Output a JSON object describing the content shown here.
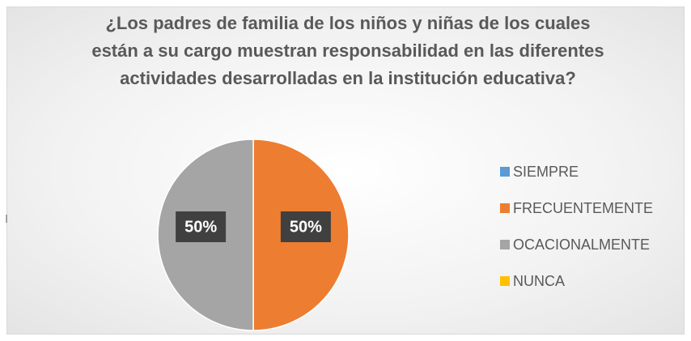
{
  "chart_data": {
    "type": "pie",
    "title": "¿Los padres de familia de los niños y niñas de los cuales están a su cargo muestran responsabilidad en las diferentes actividades desarrolladas en la institución educativa?",
    "categories": [
      "SIEMPRE",
      "FRECUENTEMENTE",
      "OCACIONALMENTE",
      "NUNCA"
    ],
    "values": [
      0,
      50,
      50,
      0
    ],
    "value_labels": [
      null,
      "50%",
      "50%",
      null
    ],
    "colors": [
      "#5b9bd5",
      "#ed7d31",
      "#a5a5a5",
      "#ffc000"
    ],
    "legend": "right"
  }
}
